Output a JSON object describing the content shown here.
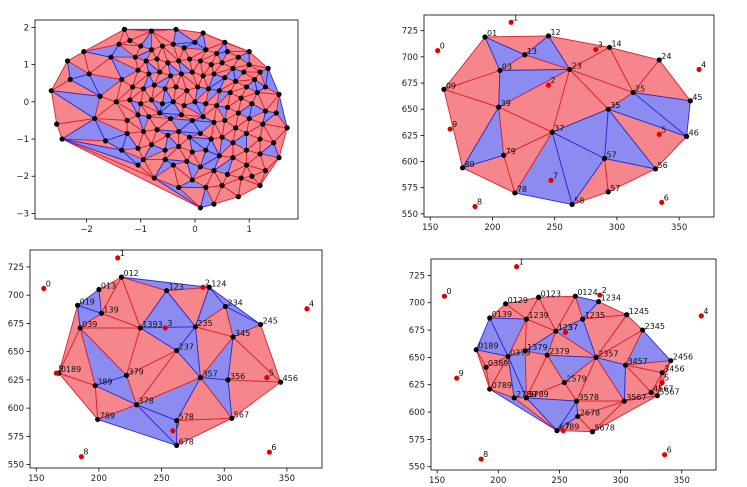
{
  "chart_data": [
    {
      "type": "scatter",
      "panel": "top-left",
      "xlim": [
        -2.95,
        1.9
      ],
      "ylim": [
        -3.15,
        2.2
      ],
      "xticks": [
        -2,
        -1,
        0,
        1
      ],
      "xtick_labels": [
        "−2",
        "−1",
        "0",
        "1"
      ],
      "yticks": [
        -3,
        -2,
        -1,
        0,
        1,
        2
      ],
      "ytick_labels": [
        "−3",
        "−2",
        "−1",
        "0",
        "1",
        "2"
      ],
      "grid": false,
      "colors": {
        "fill_a": "#f4868c",
        "fill_b": "#8c8cf0",
        "edge_a": "#e0202a",
        "edge_b": "#2a2ad6",
        "point": "#000000"
      },
      "points": [
        [
          -2.65,
          0.3
        ],
        [
          -2.35,
          1.1
        ],
        [
          -2.3,
          0.6
        ],
        [
          -2.55,
          -0.6
        ],
        [
          -2.45,
          -1.0
        ],
        [
          -2.05,
          1.35
        ],
        [
          -1.95,
          0.75
        ],
        [
          -1.75,
          0.15
        ],
        [
          -1.85,
          -0.45
        ],
        [
          -1.65,
          -1.05
        ],
        [
          -1.4,
          1.55
        ],
        [
          -1.55,
          1.2
        ],
        [
          -1.35,
          0.6
        ],
        [
          -1.45,
          0.0
        ],
        [
          -1.25,
          -0.5
        ],
        [
          -1.05,
          -1.7
        ],
        [
          -0.75,
          -2.05
        ],
        [
          -0.55,
          -1.55
        ],
        [
          -0.3,
          -2.3
        ],
        [
          0.1,
          -2.85
        ],
        [
          0.35,
          -2.75
        ],
        [
          0.8,
          -2.55
        ],
        [
          1.2,
          -2.25
        ],
        [
          1.55,
          -1.5
        ],
        [
          1.7,
          -0.7
        ],
        [
          1.55,
          0.2
        ],
        [
          1.35,
          0.9
        ],
        [
          1.0,
          1.35
        ],
        [
          0.55,
          1.6
        ],
        [
          0.15,
          1.85
        ],
        [
          -0.35,
          1.95
        ],
        [
          -0.8,
          1.9
        ],
        [
          -1.3,
          1.95
        ],
        [
          -1.2,
          1.65
        ],
        [
          -1.0,
          1.5
        ],
        [
          -0.8,
          1.4
        ],
        [
          -0.6,
          1.5
        ],
        [
          -0.4,
          1.55
        ],
        [
          -0.2,
          1.45
        ],
        [
          0.0,
          1.6
        ],
        [
          0.2,
          1.4
        ],
        [
          0.4,
          1.3
        ],
        [
          0.6,
          1.35
        ],
        [
          0.8,
          1.2
        ],
        [
          1.0,
          1.0
        ],
        [
          1.2,
          0.8
        ],
        [
          1.3,
          0.4
        ],
        [
          -1.1,
          1.2
        ],
        [
          -0.9,
          1.1
        ],
        [
          -0.7,
          1.15
        ],
        [
          -0.5,
          1.05
        ],
        [
          -0.3,
          1.1
        ],
        [
          -0.1,
          1.15
        ],
        [
          0.1,
          1.1
        ],
        [
          0.3,
          1.0
        ],
        [
          0.5,
          1.05
        ],
        [
          0.7,
          0.9
        ],
        [
          0.9,
          0.8
        ],
        [
          1.1,
          0.6
        ],
        [
          -1.05,
          0.85
        ],
        [
          -0.85,
          0.75
        ],
        [
          -0.65,
          0.8
        ],
        [
          -0.45,
          0.7
        ],
        [
          -0.25,
          0.75
        ],
        [
          -0.05,
          0.8
        ],
        [
          0.15,
          0.7
        ],
        [
          0.35,
          0.75
        ],
        [
          0.55,
          0.65
        ],
        [
          0.75,
          0.55
        ],
        [
          0.95,
          0.4
        ],
        [
          1.15,
          0.25
        ],
        [
          -1.15,
          0.4
        ],
        [
          -0.95,
          0.35
        ],
        [
          -0.75,
          0.45
        ],
        [
          -0.55,
          0.35
        ],
        [
          -0.35,
          0.4
        ],
        [
          -0.15,
          0.3
        ],
        [
          0.05,
          0.4
        ],
        [
          0.25,
          0.35
        ],
        [
          0.45,
          0.3
        ],
        [
          0.65,
          0.25
        ],
        [
          0.85,
          0.1
        ],
        [
          1.05,
          -0.05
        ],
        [
          1.3,
          -0.25
        ],
        [
          -1.2,
          0.05
        ],
        [
          -1.0,
          -0.05
        ],
        [
          -0.8,
          0.05
        ],
        [
          -0.6,
          -0.05
        ],
        [
          -0.4,
          0.0
        ],
        [
          -0.2,
          -0.1
        ],
        [
          0.0,
          0.0
        ],
        [
          0.2,
          -0.05
        ],
        [
          0.4,
          -0.1
        ],
        [
          0.6,
          -0.15
        ],
        [
          0.8,
          -0.3
        ],
        [
          1.0,
          -0.45
        ],
        [
          1.25,
          -0.6
        ],
        [
          1.5,
          -0.3
        ],
        [
          -1.05,
          -0.35
        ],
        [
          -0.85,
          -0.4
        ],
        [
          -0.65,
          -0.3
        ],
        [
          -0.45,
          -0.45
        ],
        [
          -0.25,
          -0.35
        ],
        [
          -0.05,
          -0.5
        ],
        [
          0.15,
          -0.4
        ],
        [
          0.35,
          -0.55
        ],
        [
          0.55,
          -0.5
        ],
        [
          0.75,
          -0.7
        ],
        [
          0.95,
          -0.85
        ],
        [
          1.2,
          -1.0
        ],
        [
          1.45,
          -1.1
        ],
        [
          -1.25,
          -0.85
        ],
        [
          -0.95,
          -0.8
        ],
        [
          -0.7,
          -0.75
        ],
        [
          -0.5,
          -0.9
        ],
        [
          -0.3,
          -0.8
        ],
        [
          -0.1,
          -0.95
        ],
        [
          0.1,
          -0.85
        ],
        [
          0.3,
          -1.0
        ],
        [
          0.5,
          -0.95
        ],
        [
          0.7,
          -1.1
        ],
        [
          0.95,
          -1.3
        ],
        [
          1.2,
          -1.4
        ],
        [
          -1.35,
          -1.3
        ],
        [
          -1.05,
          -1.25
        ],
        [
          -0.8,
          -1.15
        ],
        [
          -0.55,
          -1.3
        ],
        [
          -0.3,
          -1.2
        ],
        [
          -0.05,
          -1.35
        ],
        [
          0.2,
          -1.3
        ],
        [
          0.45,
          -1.45
        ],
        [
          0.7,
          -1.5
        ],
        [
          0.95,
          -1.7
        ],
        [
          1.3,
          -1.85
        ],
        [
          -0.95,
          -1.55
        ],
        [
          -0.4,
          -1.7
        ],
        [
          -0.15,
          -1.6
        ],
        [
          0.1,
          -1.75
        ],
        [
          0.35,
          -1.85
        ],
        [
          0.6,
          -1.95
        ],
        [
          0.85,
          -2.05
        ],
        [
          -0.05,
          -2.1
        ],
        [
          0.2,
          -2.3
        ],
        [
          0.5,
          -2.25
        ],
        [
          1.05,
          -2.0
        ]
      ]
    },
    {
      "type": "scatter",
      "panel": "top-right",
      "xlim": [
        145,
        378
      ],
      "ylim": [
        547,
        740
      ],
      "xticks": [
        150,
        200,
        250,
        300,
        350
      ],
      "yticks": [
        550,
        575,
        600,
        625,
        650,
        675,
        700,
        725
      ],
      "grid": false,
      "colors": {
        "fill_a": "#f4868c",
        "fill_b": "#8c8cf0",
        "edge_a": "#e0202a",
        "edge_b": "#2a2ad6",
        "vertex": "#000000",
        "site": "#e00000"
      },
      "sites": [
        {
          "label": "0",
          "x": 156,
          "y": 706
        },
        {
          "label": "1",
          "x": 215,
          "y": 733
        },
        {
          "label": "2",
          "x": 245,
          "y": 673
        },
        {
          "label": "3",
          "x": 283,
          "y": 707
        },
        {
          "label": "4",
          "x": 366,
          "y": 688
        },
        {
          "label": "5",
          "x": 334,
          "y": 626
        },
        {
          "label": "6",
          "x": 336,
          "y": 561
        },
        {
          "label": "7",
          "x": 247,
          "y": 582
        },
        {
          "label": "8",
          "x": 186,
          "y": 557
        },
        {
          "label": "9",
          "x": 166,
          "y": 631
        }
      ],
      "vertices": [
        {
          "label": "01",
          "x": 194,
          "y": 719
        },
        {
          "label": "12",
          "x": 245,
          "y": 720
        },
        {
          "label": "14",
          "x": 294,
          "y": 709
        },
        {
          "label": "24",
          "x": 334,
          "y": 697
        },
        {
          "label": "45",
          "x": 359,
          "y": 658
        },
        {
          "label": "46",
          "x": 356,
          "y": 624
        },
        {
          "label": "56",
          "x": 331,
          "y": 593
        },
        {
          "label": "57",
          "x": 293,
          "y": 571
        },
        {
          "label": "58",
          "x": 264,
          "y": 559
        },
        {
          "label": "78",
          "x": 218,
          "y": 570
        },
        {
          "label": "89",
          "x": 176,
          "y": 594
        },
        {
          "label": "09",
          "x": 161,
          "y": 669
        },
        {
          "label": "03",
          "x": 206,
          "y": 687
        },
        {
          "label": "13",
          "x": 226,
          "y": 702
        },
        {
          "label": "23",
          "x": 262,
          "y": 688
        },
        {
          "label": "25",
          "x": 313,
          "y": 666
        },
        {
          "label": "35",
          "x": 293,
          "y": 650
        },
        {
          "label": "37",
          "x": 248,
          "y": 628
        },
        {
          "label": "39",
          "x": 205,
          "y": 652
        },
        {
          "label": "79",
          "x": 209,
          "y": 606
        },
        {
          "label": "57b",
          "text": "57",
          "x": 290,
          "y": 603
        }
      ]
    },
    {
      "type": "scatter",
      "panel": "bottom-left",
      "xlim": [
        145,
        378
      ],
      "ylim": [
        547,
        740
      ],
      "xticks": [
        150,
        200,
        250,
        300,
        350
      ],
      "yticks": [
        550,
        575,
        600,
        625,
        650,
        675,
        700,
        725
      ],
      "grid": false,
      "sites": [
        {
          "label": "0",
          "x": 156,
          "y": 706
        },
        {
          "label": "1",
          "x": 215,
          "y": 733
        },
        {
          "label": "2",
          "x": 283,
          "y": 707
        },
        {
          "label": "3",
          "x": 253,
          "y": 671
        },
        {
          "label": "4",
          "x": 366,
          "y": 688
        },
        {
          "label": "5",
          "x": 334,
          "y": 627
        },
        {
          "label": "6",
          "x": 336,
          "y": 561
        },
        {
          "label": "7",
          "x": 259,
          "y": 580
        },
        {
          "label": "8",
          "x": 186,
          "y": 557
        },
        {
          "label": "9",
          "x": 166,
          "y": 631
        }
      ],
      "vertices": [
        {
          "label": "012",
          "x": 218,
          "y": 716
        },
        {
          "label": "124",
          "x": 288,
          "y": 707
        },
        {
          "label": "123",
          "x": 254,
          "y": 704
        },
        {
          "label": "234",
          "x": 301,
          "y": 690
        },
        {
          "label": "245",
          "x": 329,
          "y": 674
        },
        {
          "label": "345",
          "x": 307,
          "y": 663
        },
        {
          "label": "456",
          "x": 345,
          "y": 623
        },
        {
          "label": "356",
          "x": 303,
          "y": 625
        },
        {
          "label": "357",
          "x": 281,
          "y": 627
        },
        {
          "label": "567",
          "x": 306,
          "y": 591
        },
        {
          "label": "578",
          "x": 262,
          "y": 589
        },
        {
          "label": "678",
          "x": 262,
          "y": 567
        },
        {
          "label": "378",
          "x": 230,
          "y": 603
        },
        {
          "label": "789",
          "x": 199,
          "y": 590
        },
        {
          "label": "389",
          "x": 197,
          "y": 620
        },
        {
          "label": "379",
          "x": 222,
          "y": 629
        },
        {
          "label": "0189",
          "x": 168,
          "y": 631
        },
        {
          "label": "019",
          "x": 183,
          "y": 691
        },
        {
          "label": "013",
          "x": 200,
          "y": 705
        },
        {
          "label": "139",
          "x": 202,
          "y": 684
        },
        {
          "label": "039",
          "x": 185,
          "y": 671
        },
        {
          "label": "1393",
          "text": "1393",
          "x": 233,
          "y": 671
        },
        {
          "label": "237",
          "x": 262,
          "y": 651
        },
        {
          "label": "235",
          "x": 277,
          "y": 672
        }
      ]
    },
    {
      "type": "scatter",
      "panel": "bottom-right",
      "xlim": [
        145,
        378
      ],
      "ylim": [
        547,
        740
      ],
      "xticks": [
        150,
        200,
        250,
        300,
        350
      ],
      "yticks": [
        550,
        575,
        600,
        625,
        650,
        675,
        700,
        725
      ],
      "grid": false,
      "sites": [
        {
          "label": "0",
          "x": 156,
          "y": 706
        },
        {
          "label": "1",
          "x": 215,
          "y": 733
        },
        {
          "label": "2",
          "x": 283,
          "y": 707
        },
        {
          "label": "3",
          "x": 255,
          "y": 673
        },
        {
          "label": "4",
          "x": 366,
          "y": 688
        },
        {
          "label": "5",
          "x": 334,
          "y": 627
        },
        {
          "label": "6",
          "x": 336,
          "y": 561
        },
        {
          "label": "7",
          "x": 253,
          "y": 583
        },
        {
          "label": "8",
          "x": 186,
          "y": 557
        },
        {
          "label": "9",
          "x": 166,
          "y": 631
        }
      ],
      "vertices": [
        {
          "label": "0129",
          "x": 206,
          "y": 699
        },
        {
          "label": "0123",
          "x": 233,
          "y": 705
        },
        {
          "label": "0124",
          "x": 263,
          "y": 706
        },
        {
          "label": "1234",
          "x": 282,
          "y": 701
        },
        {
          "label": "1245",
          "x": 305,
          "y": 689
        },
        {
          "label": "2345",
          "x": 318,
          "y": 675
        },
        {
          "label": "2456",
          "x": 341,
          "y": 647
        },
        {
          "label": "3456",
          "x": 334,
          "y": 636
        },
        {
          "label": "5567",
          "x": 330,
          "y": 615
        },
        {
          "label": "4567",
          "x": 325,
          "y": 618
        },
        {
          "label": "3567",
          "x": 303,
          "y": 610
        },
        {
          "label": "5678",
          "x": 277,
          "y": 582
        },
        {
          "label": "6789",
          "x": 248,
          "y": 583
        },
        {
          "label": "2789",
          "x": 213,
          "y": 613
        },
        {
          "label": "0789",
          "x": 193,
          "y": 621
        },
        {
          "label": "0389",
          "x": 190,
          "y": 641
        },
        {
          "label": "0189",
          "x": 182,
          "y": 657
        },
        {
          "label": "0139",
          "x": 193,
          "y": 686
        },
        {
          "label": "1239",
          "x": 223,
          "y": 685
        },
        {
          "label": "1237",
          "x": 247,
          "y": 674
        },
        {
          "label": "1235",
          "x": 269,
          "y": 685
        },
        {
          "label": "1379",
          "x": 222,
          "y": 656
        },
        {
          "label": "0379",
          "x": 208,
          "y": 651
        },
        {
          "label": "2379",
          "x": 240,
          "y": 652
        },
        {
          "label": "2357",
          "x": 280,
          "y": 650
        },
        {
          "label": "3457",
          "x": 304,
          "y": 643
        },
        {
          "label": "2579",
          "x": 254,
          "y": 627
        },
        {
          "label": "3578",
          "x": 264,
          "y": 610
        },
        {
          "label": "5678b",
          "text": "2678",
          "x": 265,
          "y": 596
        },
        {
          "label": "3789",
          "x": 223,
          "y": 613
        }
      ]
    }
  ]
}
